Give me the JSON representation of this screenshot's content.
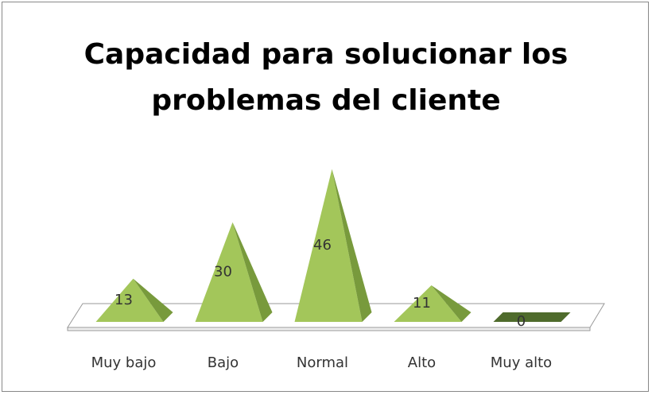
{
  "chart_data": {
    "type": "pyramid",
    "title": "Capacidad para solucionar los problemas del cliente",
    "categories": [
      "Muy bajo",
      "Bajo",
      "Normal",
      "Alto",
      "Muy alto"
    ],
    "values": [
      13,
      30,
      46,
      11,
      0
    ],
    "color": "#a3c65a"
  }
}
